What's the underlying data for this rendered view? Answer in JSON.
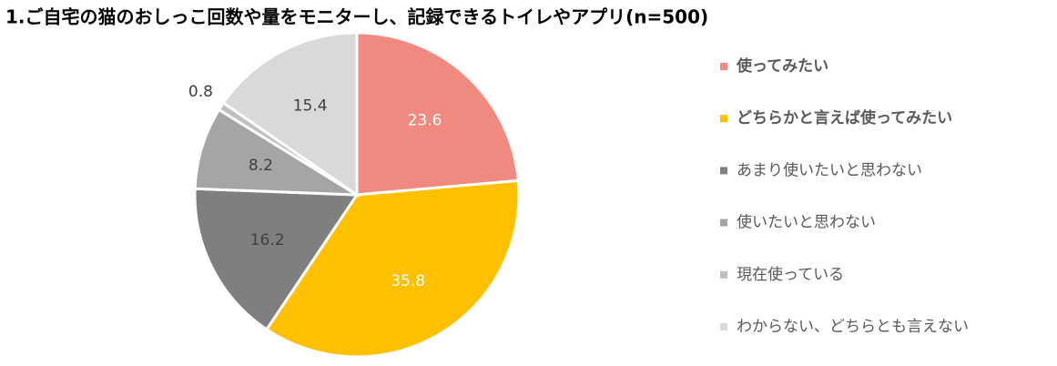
{
  "chart_data": {
    "type": "pie",
    "title": "1.ご自宅の猫のおしっこ回数や量をモニターし、記録できるトイレやアプリ(n=500)",
    "categories": [
      "使ってみたい",
      "どちらかと言えば使ってみたい",
      "あまり使いたいと思わない",
      "使いたいと思わない",
      "現在使っている",
      "わからない、どちらとも言えない"
    ],
    "values": [
      23.6,
      35.8,
      16.2,
      8.2,
      0.8,
      15.4
    ],
    "colors": [
      "#f08a80",
      "#ffc000",
      "#7f7f7f",
      "#a5a5a5",
      "#bfbfbf",
      "#d9d9d9"
    ],
    "label_colors": [
      "#ffffff",
      "#ffffff",
      "#404040",
      "#404040",
      "#404040",
      "#404040"
    ]
  }
}
